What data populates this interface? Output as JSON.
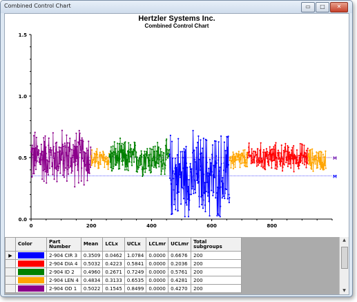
{
  "window": {
    "title": "Combined Control Chart",
    "buttons": {
      "minimize": "▭",
      "maximize": "□",
      "close": "✕"
    }
  },
  "chart_data": {
    "type": "line",
    "title": "Hertzler Systems Inc.",
    "subtitle": "Combined Control Chart",
    "x_ticks": [
      "0",
      "200",
      "400",
      "600",
      "800"
    ],
    "y_ticks": [
      "0.0",
      "0.5",
      "1.0",
      "1.5"
    ],
    "xlim": [
      0,
      1000
    ],
    "ylim": [
      0,
      1.5
    ],
    "ref_line_labels": [
      "M",
      "M"
    ],
    "series": [
      {
        "name": "2-904 CIR 3",
        "color": "#0000ff",
        "start": 460,
        "n": 200,
        "mean": 0.3509,
        "lcl": 0.0462,
        "ucl": 1.0784
      },
      {
        "name": "2-904 DIA 4",
        "color": "#ff0000",
        "start": 720,
        "n": 200,
        "mean": 0.5032,
        "lcl": 0.4223,
        "ucl": 0.5841
      },
      {
        "name": "2-904 ID 2",
        "color": "#008000",
        "start": 260,
        "n": 200,
        "mean": 0.496,
        "lcl": 0.2671,
        "ucl": 0.7249
      },
      {
        "name": "2-904 LEN 4",
        "color": "#ffa500",
        "start": 200,
        "n": 60,
        "mean": 0.4834,
        "lcl": 0.3133,
        "ucl": 0.6535
      },
      {
        "name": "2-904 OD 1",
        "color": "#8b008b",
        "start": 0,
        "n": 200,
        "mean": 0.5022,
        "lcl": 0.1545,
        "ucl": 0.8499
      }
    ],
    "extra_segments": [
      {
        "color": "#ffa500",
        "start": 660,
        "n": 60,
        "mean": 0.4834
      },
      {
        "color": "#ffa500",
        "start": 920,
        "n": 60,
        "mean": 0.4834
      }
    ]
  },
  "table": {
    "headers": [
      "Color",
      "Part\nNumber",
      "Mean",
      "LCLx",
      "UCLx",
      "LCLmr",
      "UCLmr",
      "Total\nsubgroups"
    ],
    "rows": [
      {
        "color": "#0000ff",
        "part": "2-904 CIR 3",
        "mean": "0.3509",
        "lclx": "0.0462",
        "uclx": "1.0784",
        "lclmr": "0.0000",
        "uclmr": "0.6676",
        "total": "200",
        "current": true
      },
      {
        "color": "#ff0000",
        "part": "2-904 DIA 4",
        "mean": "0.5032",
        "lclx": "0.4223",
        "uclx": "0.5841",
        "lclmr": "0.0000",
        "uclmr": "0.2036",
        "total": "200",
        "current": false
      },
      {
        "color": "#008000",
        "part": "2-904 ID 2",
        "mean": "0.4960",
        "lclx": "0.2671",
        "uclx": "0.7249",
        "lclmr": "0.0000",
        "uclmr": "0.5761",
        "total": "200",
        "current": false
      },
      {
        "color": "#ffa500",
        "part": "2-904 LEN 4",
        "mean": "0.4834",
        "lclx": "0.3133",
        "uclx": "0.6535",
        "lclmr": "0.0000",
        "uclmr": "0.4281",
        "total": "200",
        "current": false
      },
      {
        "color": "#8b008b",
        "part": "2-904 OD 1",
        "mean": "0.5022",
        "lclx": "0.1545",
        "uclx": "0.8499",
        "lclmr": "0.0000",
        "uclmr": "0.4270",
        "total": "200",
        "current": false
      }
    ],
    "current_row_marker": "▶"
  }
}
